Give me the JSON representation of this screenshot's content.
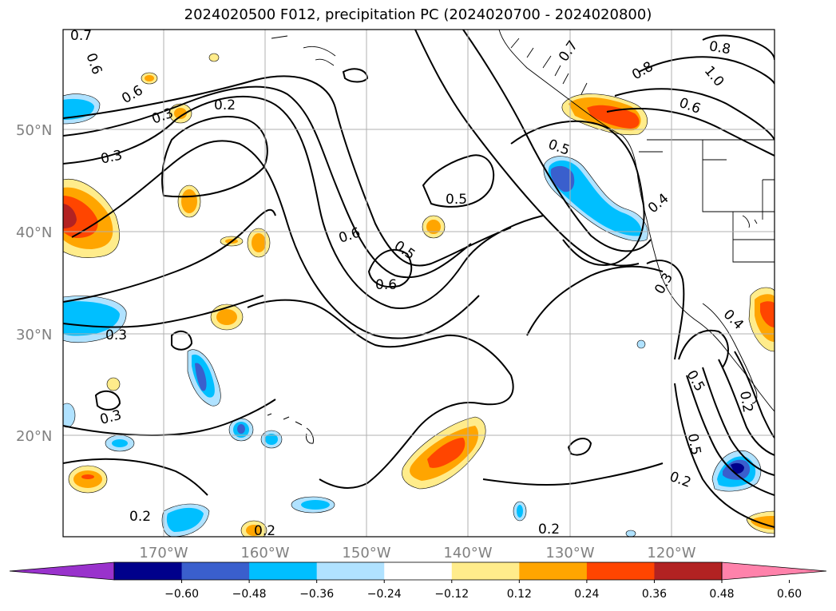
{
  "title": "2024020500 F012, precipitation PC (2024020700 - 2024020800)",
  "map": {
    "lat_labels": [
      "50°N",
      "40°N",
      "30°N",
      "20°N"
    ],
    "lon_labels": [
      "170°W",
      "160°W",
      "150°W",
      "140°W",
      "130°W",
      "120°W"
    ]
  },
  "contour_labels": [
    "0.7",
    "0.6",
    "0.6",
    "0.3",
    "0.2",
    "0.3",
    "0.6",
    "0.5",
    "0.6",
    "0.5",
    "0.3",
    "0.2",
    "0.3",
    "0.5",
    "0.7",
    "0.8",
    "0.8",
    "1.0",
    "0.6",
    "0.4",
    "0.3",
    "0.4",
    "0.5",
    "0.2",
    "0.5",
    "0.2",
    "0.2",
    "0.2"
  ],
  "colorbar": {
    "ticks": [
      "−0.60",
      "−0.48",
      "−0.36",
      "−0.24",
      "−0.12",
      "0.12",
      "0.24",
      "0.36",
      "0.48",
      "0.60"
    ],
    "colors": [
      "#9932cc",
      "#00008b",
      "#3a5fcd",
      "#00bfff",
      "#b0e2ff",
      "#ffffff",
      "#ffec8b",
      "#ffa500",
      "#ff4500",
      "#b22222",
      "#ff82ab"
    ]
  },
  "shading": {
    "positive": {
      "light": "#ffec8b",
      "mid": "#ffa500",
      "high": "#ff4500",
      "top": "#b22222"
    },
    "negative": {
      "light": "#b0e2ff",
      "mid": "#00bfff",
      "high": "#3a5fcd"
    }
  }
}
